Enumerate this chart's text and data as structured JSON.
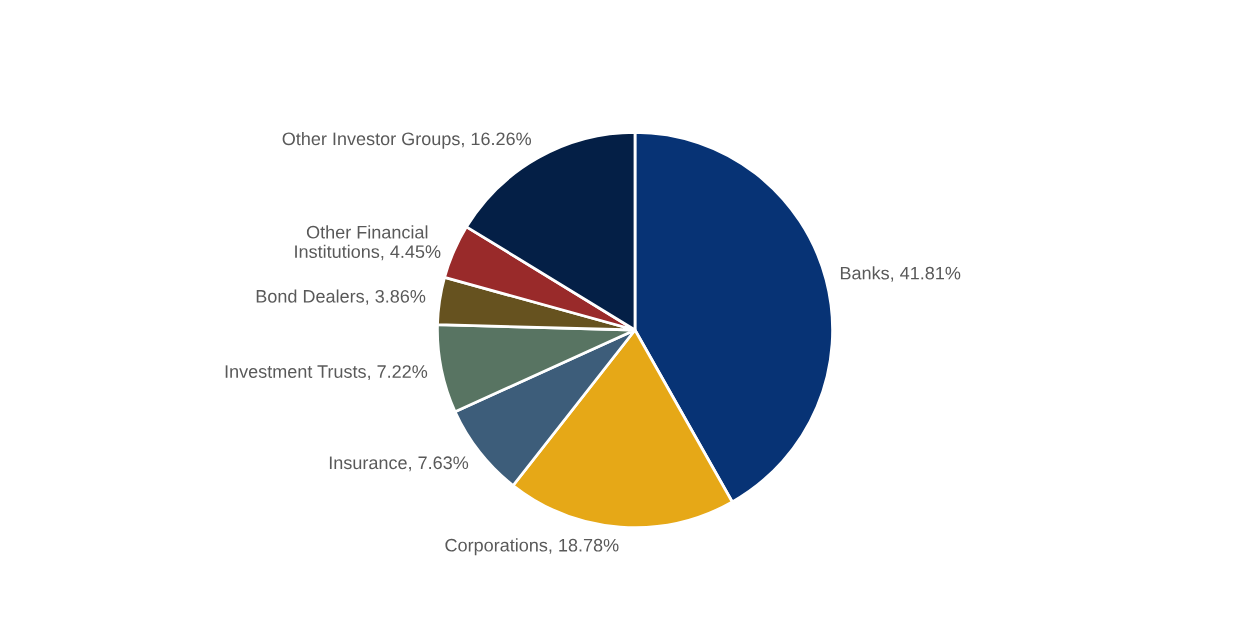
{
  "chart_data": {
    "type": "pie",
    "categories": [
      "Banks",
      "Corporations",
      "Insurance",
      "Investment Trusts",
      "Bond Dealers",
      "Other Financial\nInstitutions",
      "Other Investor Groups"
    ],
    "values": [
      41.81,
      18.78,
      7.63,
      7.22,
      3.86,
      4.45,
      16.26
    ],
    "colors": [
      "#073375",
      "#e6a817",
      "#3d5d7a",
      "#587462",
      "#66521f",
      "#992a2a",
      "#041f46"
    ],
    "value_labels": [
      "41.81%",
      "18.78%",
      "7.63%",
      "7.22%",
      "3.86%",
      "4.45%",
      "16.26%"
    ]
  }
}
